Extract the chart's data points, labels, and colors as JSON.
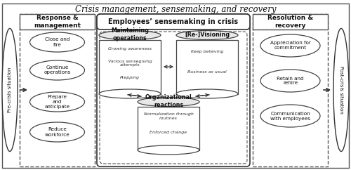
{
  "title": "Crisis management, sensemaking, and recovery",
  "bg_color": "#ffffff",
  "pre_crisis_label": "Pre-crisis situation",
  "post_crisis_label": "Post-crisis situation",
  "left_box_title": "Response &\nmanagement",
  "center_box_title": "Employees’ sensemaking in crisis",
  "right_box_title": "Resolution &\nrecovery",
  "left_ovals": [
    "Close and\nfire",
    "Continue\noperations",
    "Prepare\nand\nanticipate",
    "Reduce\nworkforce"
  ],
  "cylinder_maintaining_title": "Maintaining\noperations",
  "cylinder_maintaining_items": [
    "Growing awareness",
    "Various sensegiving\nattempts",
    "Prepping"
  ],
  "cylinder_revisioning_title": "[Re-]Visioning",
  "cylinder_revisioning_items": [
    "Keep believing",
    "Business as usual"
  ],
  "cylinder_org_title": "Organizational\nreactions",
  "cylinder_org_items": [
    "Normalization through\nroutines",
    "Enforced change"
  ],
  "right_ovals": [
    "Appreciation for\ncommitment",
    "Retain and\nrehire",
    "Communication\nwith employees"
  ]
}
